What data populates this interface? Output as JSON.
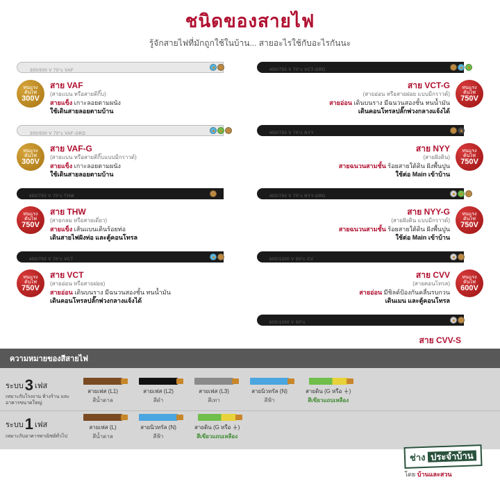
{
  "header": {
    "title": "ชนิดของสายไฟ",
    "subtitle": "รู้จักสายไฟที่มักถูกใช้ในบ้าน... สายอะไรใช้กับอะไรกันนะ"
  },
  "badge_labels": {
    "top": "ทนแรง",
    "mid": "ดันไฟ"
  },
  "voltages": {
    "v300": "300V",
    "v750": "750V",
    "v600": "600V"
  },
  "cables": [
    {
      "name": "สาย VAF",
      "sub": "(สายแบน หรือสายตีกิ๊บ)",
      "hl": "สายแข็ง",
      "mid": "เกาะลอยตามผนัง",
      "use": "ใช้เดินสายลอยตามบ้าน",
      "badge": "gold",
      "v": "v300",
      "side": "left",
      "jacket": "white",
      "jlabel": "300/500 V 70°c VAF",
      "cores": [
        "#5ab6e0",
        "#b88a4a"
      ]
    },
    {
      "name": "สาย VCT-G",
      "sub": "(สายอ่อน หรือสายฝอย แบบมีกราวด์)",
      "hl": "สายอ่อน",
      "mid": "เดินบนราง มีฉนวนสองชั้น ทนน้ำมัน",
      "use": "เดินคอนโทรลปลั๊กพ่วงกลางแจ้งได้",
      "badge": "red",
      "v": "v750",
      "side": "right",
      "jacket": "black",
      "jlabel": "450/750 V 70°c VCT-GRD",
      "cores": [
        "#b88a4a",
        "#5ab6e0",
        "#6fbf4a"
      ]
    },
    {
      "name": "สาย VAF-G",
      "sub": "(สายแบน หรือสายตีกิ๊บแบบมีกราวด์)",
      "hl": "สายแข็ง",
      "mid": "เกาะลอยตามผนัง",
      "use": "ใช้เดินสายลอยตามบ้าน",
      "badge": "gold",
      "v": "v300",
      "side": "left",
      "jacket": "white",
      "jlabel": "300/500 V 70°c VAF-GRD",
      "cores": [
        "#5ab6e0",
        "#6fbf4a",
        "#b88a4a"
      ]
    },
    {
      "name": "สาย NYY",
      "sub": "(สายฝังดิน)",
      "hl": "สายฉนวนสามชั้น",
      "mid": "ร้อยสายใต้ดิน ฝังพื้นปูน",
      "use": "ใช้ต่อ Main เข้าบ้าน",
      "badge": "red",
      "v": "v750",
      "side": "right",
      "jacket": "black",
      "jlabel": "450/750 V 70°c NYY",
      "cores": [
        "#b88a4a",
        "#4a4a4a"
      ]
    },
    {
      "name": "สาย THW",
      "sub": "(สายกลม หรือสายเดี่ยว)",
      "hl": "สายแข็ง",
      "mid": "เส้นแบนเดินร้อยท่อ",
      "use": "เดินสายไฟฝังท่อ และตู้คอนโทรล",
      "badge": "red",
      "v": "v750",
      "side": "left",
      "jacket": "black",
      "jlabel": "450/750 V 70°c THW",
      "cores": [
        "#b88a4a"
      ]
    },
    {
      "name": "สาย NYY-G",
      "sub": "(สายฝังดิน แบบมีกราวด์)",
      "hl": "สายฉนวนสามชั้น",
      "mid": "ร้อยสายใต้ดิน ฝังพื้นปูน",
      "use": "ใช้ต่อ Main เข้าบ้าน",
      "badge": "red",
      "v": "v750",
      "side": "right",
      "jacket": "black",
      "jlabel": "450/750 V 70°c NYY-GRD",
      "cores": [
        "#d0d0d0",
        "#6fbf4a",
        "#b88a4a"
      ]
    },
    {
      "name": "สาย VCT",
      "sub": "(สายอ่อน หรือสายฝอย)",
      "hl": "สายอ่อน",
      "mid": "เดินบนราง มีฉนวนสองชั้น ทนน้ำมัน",
      "use": "เดินคอนโทรลปลั๊กพ่วงกลางแจ้งได้",
      "badge": "red",
      "v": "v750",
      "side": "left",
      "jacket": "black",
      "jlabel": "450/750 V 70°c VCT",
      "cores": [
        "#5ab6e0",
        "#b88a4a"
      ]
    },
    {
      "name": "สาย CVV",
      "sub": "(สายคอนโทรล)",
      "hl": "สายอ่อน",
      "mid": "มีชิลด์ป้องกันคลื่นรบกวน",
      "use": "เดินเมน และตู้คอนโทรล",
      "badge": "red",
      "v": "v600",
      "side": "right",
      "jacket": "black",
      "jlabel": "600/1000 V 90°c CV",
      "cores": [
        "#d0d0d0",
        "#b88a4a"
      ]
    }
  ],
  "extra": {
    "name": "สาย CVV-S",
    "jlabel": "600/1000 V 90°c"
  },
  "meaning": {
    "header": "ความหมายของสีสายไฟ",
    "rows": [
      {
        "label_big": "ระบบ",
        "num": "3",
        "unit": "เฟส",
        "desc": "เหมาะกับโรงงาน ห้างร้าน และอาคารขนาดใหญ่",
        "wires": [
          {
            "lbl": "สายเฟส (L1)",
            "clr": "สีน้ำตาล",
            "bar": "#7a4a22"
          },
          {
            "lbl": "สายเฟส (L2)",
            "clr": "สีดำ",
            "bar": "#111"
          },
          {
            "lbl": "สายเฟส (L3)",
            "clr": "สีเทา",
            "bar": "#8a8a8a"
          },
          {
            "lbl": "สายนิวทรัล (N)",
            "clr": "สีฟ้า",
            "bar": "#4aa6e0"
          },
          {
            "lbl": "สายดิน (G หรือ ⏚)",
            "clr": "สีเขียวแถบเหลือง",
            "bar": "linear-gradient(90deg,#6fbf4a 60%,#e8d23a 60%)",
            "green": true
          }
        ]
      },
      {
        "label_big": "ระบบ",
        "num": "1",
        "unit": "เฟส",
        "desc": "เหมาะกับอาคารพาณิชย์ทั่วไป",
        "wires": [
          {
            "lbl": "สายเฟส (L)",
            "clr": "สีน้ำตาล",
            "bar": "#7a4a22"
          },
          {
            "lbl": "สายนิวทรัล (N)",
            "clr": "สีฟ้า",
            "bar": "#4aa6e0"
          },
          {
            "lbl": "สายดิน (G หรือ ⏚)",
            "clr": "สีเขียวแถบเหลือง",
            "bar": "linear-gradient(90deg,#6fbf4a 60%,#e8d23a 60%)",
            "green": true
          }
        ]
      }
    ]
  },
  "brand": {
    "a": "ช่าง",
    "b": "ประจำบ้าน",
    "by": "โดย",
    "src": "บ้านและสวน"
  }
}
